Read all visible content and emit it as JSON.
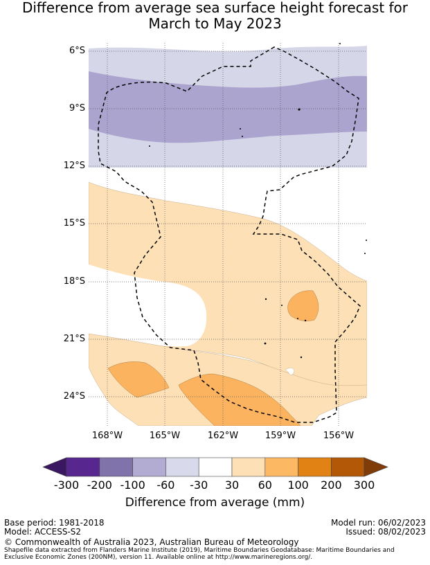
{
  "title": {
    "line1": "Difference from average sea surface height forecast for",
    "line2": "March to May 2023"
  },
  "map": {
    "lat_labels": [
      "6°S",
      "9°S",
      "12°S",
      "15°S",
      "18°S",
      "21°S",
      "24°S"
    ],
    "lon_labels": [
      "168°W",
      "165°W",
      "162°W",
      "159°W",
      "156°W"
    ],
    "eez_boundary": "dashed",
    "colors": {
      "dark_purple": "#aba4cf",
      "light_purple": "#d6d6e9",
      "light_orange": "#fee0b6",
      "orange": "#fbb35f"
    }
  },
  "colorbar": {
    "ticks": [
      "-300",
      "-200",
      "-100",
      "-60",
      "-30",
      "30",
      "60",
      "100",
      "200",
      "300"
    ],
    "colors": [
      "#3b1762",
      "#57278f",
      "#8073ac",
      "#b2abd2",
      "#d8daeb",
      "#ffffff",
      "#fee0b6",
      "#fdb863",
      "#e08214",
      "#b35806",
      "#7f3b08"
    ],
    "label": "Difference from average (mm)"
  },
  "footer": {
    "base_period": "Base period: 1981-2018",
    "model": "Model: ACCESS-S2",
    "model_run": "Model run: 06/02/2023",
    "issued": "Issued: 08/02/2023",
    "copyright": "© Commonwealth of Australia 2023, Australian Bureau of Meteorology",
    "shapefile_line1": "Shapefile data extracted from Flanders Marine Institute (2019), Maritime Boundaries Geodatabase: Maritime Boundaries and",
    "shapefile_line2": "Exclusive Economic Zones (200NM), version 11. Available online at http://www.marineregions.org/."
  }
}
